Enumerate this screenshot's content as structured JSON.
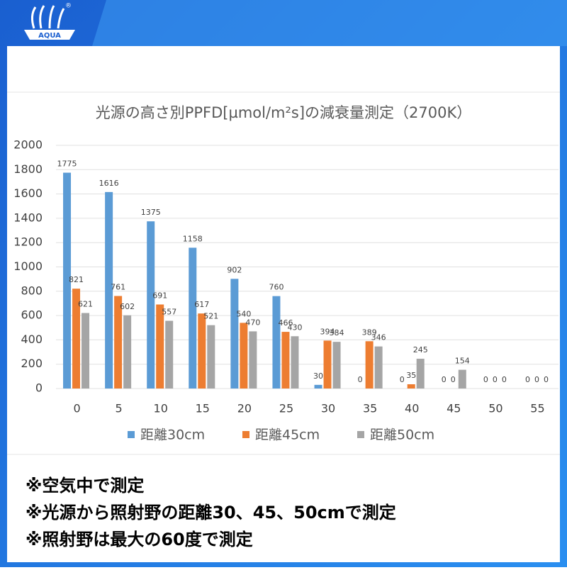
{
  "logo": "AQUA",
  "logo_mark": "®",
  "chart_data": {
    "type": "bar",
    "title": "光源の高さ別PPFD[µmol/m²s]の減衰量測定（2700K）",
    "categories": [
      "0",
      "5",
      "10",
      "15",
      "20",
      "25",
      "30",
      "35",
      "40",
      "45",
      "50",
      "55"
    ],
    "series": [
      {
        "name": "距離30cm",
        "color": "#5b9bd5",
        "values": [
          1775,
          1616,
          1375,
          1158,
          902,
          760,
          30,
          0,
          0,
          0,
          0,
          0
        ]
      },
      {
        "name": "距離45cm",
        "color": "#ed7d31",
        "values": [
          821,
          761,
          691,
          617,
          540,
          466,
          394,
          389,
          35,
          0,
          0,
          0
        ]
      },
      {
        "name": "距離50cm",
        "color": "#a5a5a5",
        "values": [
          621,
          602,
          557,
          521,
          470,
          430,
          384,
          346,
          245,
          154,
          0,
          0
        ]
      }
    ],
    "ylim": [
      0,
      2000
    ],
    "yticks": [
      0,
      200,
      400,
      600,
      800,
      1000,
      1200,
      1400,
      1600,
      1800,
      2000
    ],
    "grid": true,
    "legend": "bottom"
  },
  "notes": [
    "※空気中で測定",
    "※光源から照射野の距離30、45、50cmで測定",
    "※照射野は最大の60度で測定"
  ]
}
